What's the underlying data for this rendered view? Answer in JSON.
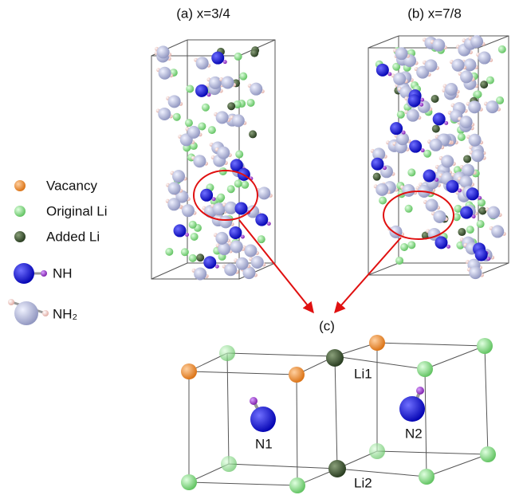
{
  "panels": {
    "a": "(a) x=3/4",
    "b": "(b) x=7/8",
    "c": "(c)"
  },
  "legend": [
    "Vacancy",
    "Original Li",
    "Added Li",
    "NH",
    "NH₂"
  ],
  "sites": {
    "li1": "Li1",
    "li2": "Li2",
    "n1": "N1",
    "n2": "N2"
  }
}
